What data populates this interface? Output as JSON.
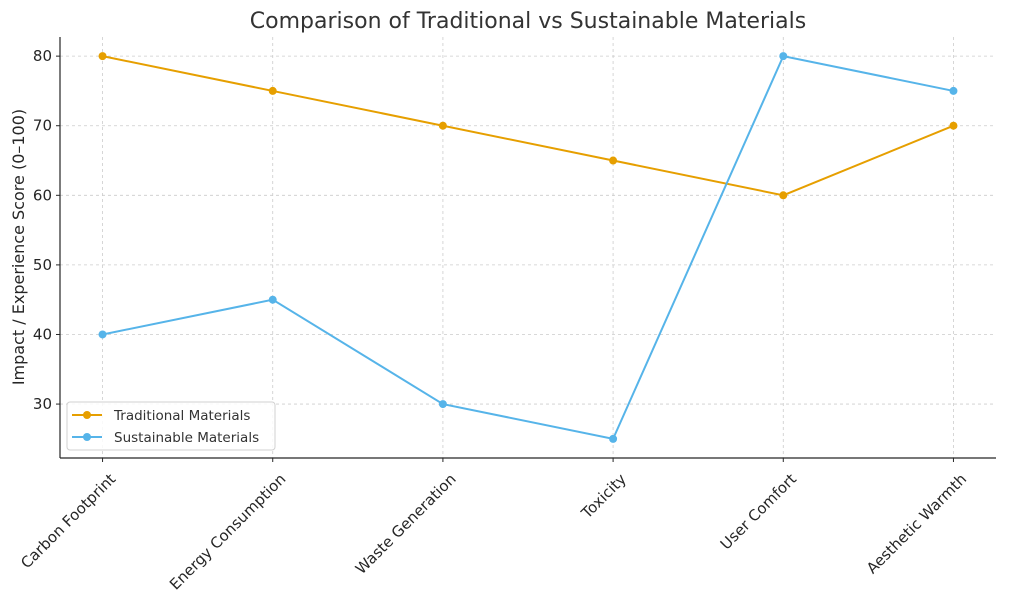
{
  "chart_data": {
    "type": "line",
    "title": "Comparison of Traditional vs Sustainable Materials",
    "xlabel": "",
    "ylabel": "Impact / Experience Score (0–100)",
    "categories": [
      "Carbon Footprint",
      "Energy Consumption",
      "Waste Generation",
      "Toxicity",
      "User Comfort",
      "Aesthetic Warmth"
    ],
    "series": [
      {
        "name": "Traditional Materials",
        "color": "#E69F00",
        "values": [
          80,
          75,
          70,
          65,
          60,
          70
        ]
      },
      {
        "name": "Sustainable Materials",
        "color": "#56B4E9",
        "values": [
          40,
          45,
          30,
          25,
          80,
          75
        ]
      }
    ],
    "yticks": [
      30,
      40,
      50,
      60,
      70,
      80
    ],
    "ylim": [
      22.25,
      82.75
    ],
    "grid": true,
    "legend": "lower-left"
  }
}
